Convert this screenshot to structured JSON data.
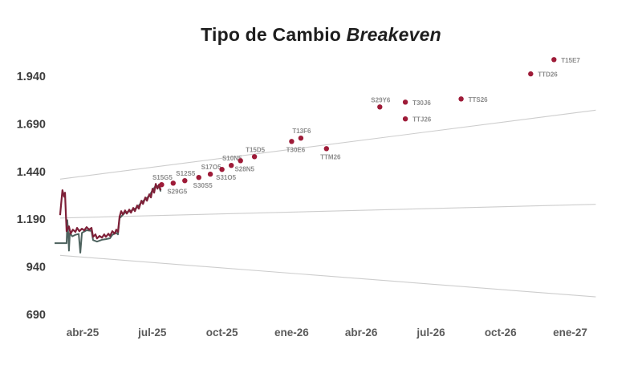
{
  "title": {
    "main": "Tipo de Cambio",
    "italic": "Breakeven"
  },
  "chart_data": {
    "type": "line+scatter",
    "title": "Tipo de Cambio Breakeven",
    "xlabel": "",
    "ylabel": "",
    "ylim": [
      690,
      1940
    ],
    "x_unit": "months_after_abr_2025",
    "grid": false,
    "legend": "none",
    "colors": {
      "scatter": "#9e1b38",
      "breakeven_line": "#7e2038",
      "official_line": "#4d625e",
      "band": "#cdcdcd",
      "y_tick": "#3d3d3d",
      "x_tick": "#5a5a5a",
      "point_label": "#8c8c8c"
    },
    "axes": {
      "y_ticks": [
        {
          "label": "1.940",
          "value": 1940
        },
        {
          "label": "1.690",
          "value": 1690
        },
        {
          "label": "1.440",
          "value": 1440
        },
        {
          "label": "1.190",
          "value": 1190
        },
        {
          "label": "940",
          "value": 940
        },
        {
          "label": "690",
          "value": 690
        }
      ],
      "x_ticks": [
        {
          "label": "abr-25",
          "t": 0
        },
        {
          "label": "jul-25",
          "t": 3
        },
        {
          "label": "oct-25",
          "t": 6
        },
        {
          "label": "ene-26",
          "t": 9
        },
        {
          "label": "abr-26",
          "t": 12
        },
        {
          "label": "jul-26",
          "t": 15
        },
        {
          "label": "oct-26",
          "t": 18
        },
        {
          "label": "ene-27",
          "t": 21
        }
      ]
    },
    "band_lines": [
      {
        "name": "banda-superior",
        "points": [
          [
            -0.97,
            1400
          ],
          [
            22.1,
            1762
          ]
        ]
      },
      {
        "name": "centro-banda",
        "points": [
          [
            -0.97,
            1196
          ],
          [
            22.1,
            1268
          ]
        ]
      },
      {
        "name": "banda-inferior",
        "points": [
          [
            -0.97,
            1000
          ],
          [
            22.1,
            782
          ]
        ]
      }
    ],
    "lines": [
      {
        "name": "tc-oficial",
        "color_key": "official_line",
        "width": 2,
        "points": [
          [
            -1.21,
            1064
          ],
          [
            -0.69,
            1064
          ],
          [
            -0.66,
            1185
          ],
          [
            -0.62,
            1110
          ],
          [
            -0.59,
            1025
          ],
          [
            -0.55,
            1118
          ],
          [
            -0.45,
            1100
          ],
          [
            -0.31,
            1108
          ],
          [
            -0.17,
            1112
          ],
          [
            -0.1,
            1014
          ],
          [
            -0.03,
            1118
          ],
          [
            0.17,
            1132
          ],
          [
            0.38,
            1128
          ],
          [
            0.45,
            1080
          ],
          [
            0.62,
            1072
          ],
          [
            0.83,
            1082
          ],
          [
            1.0,
            1085
          ],
          [
            1.18,
            1090
          ],
          [
            1.28,
            1108
          ],
          [
            1.45,
            1118
          ],
          [
            1.52,
            1110
          ],
          [
            1.59,
            1195
          ],
          [
            1.83,
            1225
          ],
          [
            2.01,
            1230
          ],
          [
            2.18,
            1240
          ],
          [
            2.35,
            1252
          ],
          [
            2.53,
            1278
          ],
          [
            2.7,
            1295
          ],
          [
            2.87,
            1312
          ],
          [
            3.01,
            1342
          ],
          [
            3.15,
            1365
          ],
          [
            3.29,
            1362
          ],
          [
            3.36,
            1335
          ]
        ]
      },
      {
        "name": "tc-breakeven-historico",
        "color_key": "breakeven_line",
        "width": 2.2,
        "points": [
          [
            -0.97,
            1211
          ],
          [
            -0.93,
            1266
          ],
          [
            -0.87,
            1342
          ],
          [
            -0.8,
            1308
          ],
          [
            -0.76,
            1329
          ],
          [
            -0.73,
            1236
          ],
          [
            -0.69,
            1127
          ],
          [
            -0.59,
            1152
          ],
          [
            -0.52,
            1114
          ],
          [
            -0.42,
            1135
          ],
          [
            -0.31,
            1123
          ],
          [
            -0.24,
            1144
          ],
          [
            -0.14,
            1127
          ],
          [
            -0.03,
            1140
          ],
          [
            0.07,
            1131
          ],
          [
            0.17,
            1148
          ],
          [
            0.28,
            1135
          ],
          [
            0.38,
            1144
          ],
          [
            0.45,
            1097
          ],
          [
            0.55,
            1110
          ],
          [
            0.62,
            1089
          ],
          [
            0.73,
            1102
          ],
          [
            0.83,
            1093
          ],
          [
            0.93,
            1110
          ],
          [
            1.0,
            1097
          ],
          [
            1.11,
            1114
          ],
          [
            1.18,
            1102
          ],
          [
            1.28,
            1127
          ],
          [
            1.38,
            1114
          ],
          [
            1.45,
            1135
          ],
          [
            1.52,
            1123
          ],
          [
            1.59,
            1203
          ],
          [
            1.66,
            1232
          ],
          [
            1.73,
            1215
          ],
          [
            1.83,
            1236
          ],
          [
            1.9,
            1219
          ],
          [
            2.01,
            1240
          ],
          [
            2.08,
            1224
          ],
          [
            2.18,
            1249
          ],
          [
            2.25,
            1232
          ],
          [
            2.35,
            1262
          ],
          [
            2.42,
            1245
          ],
          [
            2.53,
            1287
          ],
          [
            2.6,
            1270
          ],
          [
            2.7,
            1304
          ],
          [
            2.77,
            1287
          ],
          [
            2.87,
            1320
          ],
          [
            2.94,
            1304
          ],
          [
            3.01,
            1350
          ],
          [
            3.08,
            1329
          ],
          [
            3.15,
            1375
          ],
          [
            3.22,
            1350
          ],
          [
            3.29,
            1371
          ],
          [
            3.36,
            1342
          ]
        ]
      }
    ],
    "scatter_points": [
      {
        "ticker": "S15G5",
        "t": 3.4,
        "value": 1371,
        "label_pos": "above"
      },
      {
        "ticker": "S29G5",
        "t": 3.9,
        "value": 1379,
        "label_pos": "below"
      },
      {
        "ticker": "S12S5",
        "t": 4.4,
        "value": 1392,
        "label_pos": "above"
      },
      {
        "ticker": "S30S5",
        "t": 5.0,
        "value": 1409,
        "label_pos": "below"
      },
      {
        "ticker": "S17O5",
        "t": 5.5,
        "value": 1426,
        "label_pos": "above"
      },
      {
        "ticker": "S31O5",
        "t": 6.0,
        "value": 1451,
        "label_pos": "below"
      },
      {
        "ticker": "S10N5",
        "t": 6.4,
        "value": 1472,
        "label_pos": "above"
      },
      {
        "ticker": "S28N5",
        "t": 6.8,
        "value": 1497,
        "label_pos": "below"
      },
      {
        "ticker": "T15D5",
        "t": 7.4,
        "value": 1518,
        "label_pos": "above"
      },
      {
        "ticker": "T30E6",
        "t": 9.0,
        "value": 1598,
        "label_pos": "below"
      },
      {
        "ticker": "T13F6",
        "t": 9.4,
        "value": 1615,
        "label_pos": "above"
      },
      {
        "ticker": "TTM26",
        "t": 10.5,
        "value": 1560,
        "label_pos": "below"
      },
      {
        "ticker": "S29Y6",
        "t": 12.8,
        "value": 1779,
        "label_pos": "above"
      },
      {
        "ticker": "T30J6",
        "t": 13.9,
        "value": 1804,
        "label_pos": "right"
      },
      {
        "ticker": "TTJ26",
        "t": 13.9,
        "value": 1716,
        "label_pos": "right"
      },
      {
        "ticker": "TTS26",
        "t": 16.3,
        "value": 1821,
        "label_pos": "right"
      },
      {
        "ticker": "TTD26",
        "t": 19.3,
        "value": 1952,
        "label_pos": "right"
      },
      {
        "ticker": "T15E7",
        "t": 20.3,
        "value": 2027,
        "label_pos": "right"
      }
    ]
  }
}
